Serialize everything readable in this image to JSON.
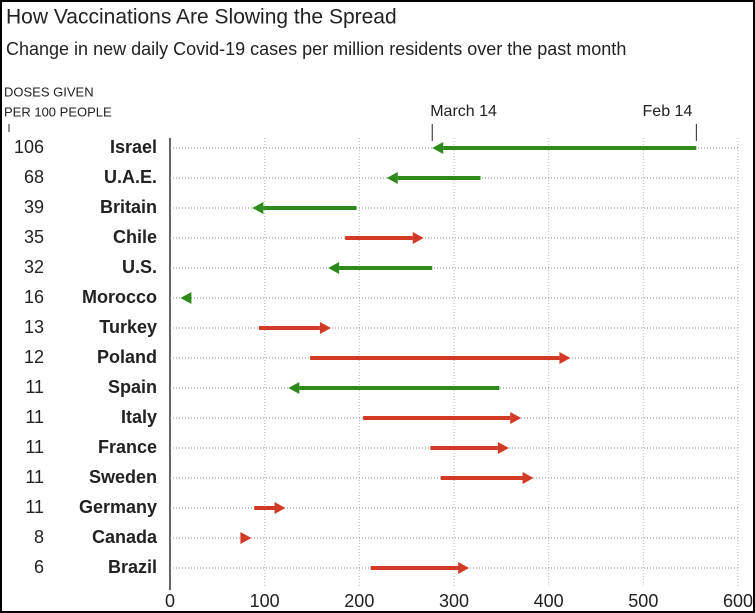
{
  "chart_data": {
    "type": "arrow",
    "title": "How Vaccinations Are Slowing the Spread",
    "subtitle": "Change in new daily Covid-19 cases per million residents over the past month",
    "doses_label": [
      "DOSES GIVEN",
      "PER 100 PEOPLE"
    ],
    "categories": [
      "Israel",
      "U.A.E.",
      "Britain",
      "Chile",
      "U.S.",
      "Morocco",
      "Turkey",
      "Poland",
      "Spain",
      "Italy",
      "France",
      "Sweden",
      "Germany",
      "Canada",
      "Brazil"
    ],
    "doses": [
      106,
      68,
      39,
      35,
      32,
      16,
      13,
      12,
      11,
      11,
      11,
      11,
      11,
      8,
      6
    ],
    "series": [
      {
        "name": "Feb 14",
        "values": [
          556,
          328,
          197,
          185,
          277,
          20,
          94,
          148,
          348,
          204,
          275,
          286,
          89,
          78,
          212
        ]
      },
      {
        "name": "March 14",
        "values": [
          277,
          229,
          87,
          268,
          167,
          11,
          170,
          423,
          125,
          371,
          358,
          384,
          122,
          86,
          316
        ]
      }
    ],
    "increase_color": "#d23a26",
    "decrease_color": "#2f8a1c",
    "xlim": [
      0,
      600
    ],
    "xticks": [
      0,
      100,
      200,
      300,
      400,
      500,
      600
    ],
    "grid": true
  }
}
